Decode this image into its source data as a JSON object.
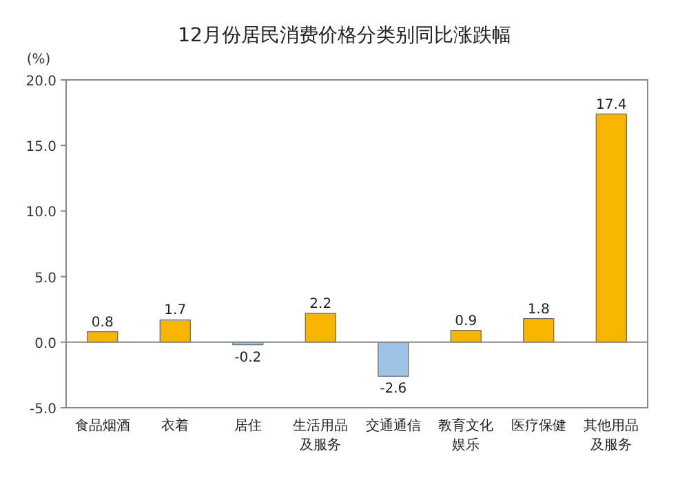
{
  "chart_data": {
    "type": "bar",
    "title": "12月份居民消费价格分类别同比涨跌幅",
    "ylabel": "(%)",
    "categories": [
      "食品烟酒",
      "衣着",
      "居住",
      "生活用品及服务",
      "交通通信",
      "教育文化娱乐",
      "医疗保健",
      "其他用品及服务"
    ],
    "values": [
      0.8,
      1.7,
      -0.2,
      2.2,
      -2.6,
      0.9,
      1.8,
      17.4
    ],
    "colors": [
      "#f7b500",
      "#f7b500",
      "#9dc3e6",
      "#f7b500",
      "#9dc3e6",
      "#f7b500",
      "#f7b500",
      "#f7b500"
    ],
    "ylim": [
      -5,
      20
    ],
    "yticks": [
      {
        "value": -5,
        "label": "-5.0"
      },
      {
        "value": 0,
        "label": "0.0"
      },
      {
        "value": 5,
        "label": "5.0"
      },
      {
        "value": 10,
        "label": "10.0"
      },
      {
        "value": 15,
        "label": "15.0"
      },
      {
        "value": 20,
        "label": "20.0"
      }
    ],
    "data_labels": true
  }
}
